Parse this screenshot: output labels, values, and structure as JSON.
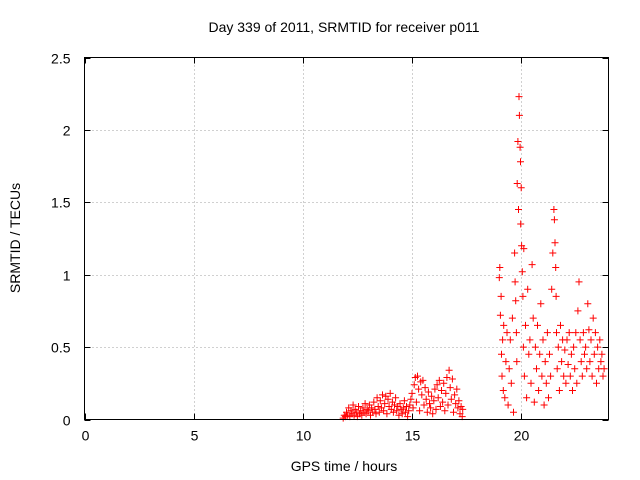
{
  "chart_data": {
    "type": "scatter",
    "title": "Day 339 of 2011, SRMTID for receiver p011",
    "xlabel": "GPS time / hours",
    "ylabel": "SRMTID / TECUs",
    "xlim": [
      0,
      24
    ],
    "ylim": [
      0,
      2.5
    ],
    "x_ticks": [
      0,
      5,
      10,
      15,
      20
    ],
    "x_tick_labels": [
      "0",
      "5",
      "10",
      "15",
      "20"
    ],
    "y_ticks": [
      0,
      0.5,
      1,
      1.5,
      2,
      2.5
    ],
    "y_tick_labels": [
      "0",
      "0.5",
      "1",
      "1.5",
      "2",
      "2.5"
    ],
    "grid": true,
    "marker": "+",
    "series": [
      {
        "name": "SRMTID p011",
        "color": "#ff0000",
        "points": [
          [
            11.85,
            0.01
          ],
          [
            11.9,
            0.03
          ],
          [
            11.95,
            0.02
          ],
          [
            12.0,
            0.05
          ],
          [
            12.05,
            0.03
          ],
          [
            12.1,
            0.08
          ],
          [
            12.15,
            0.02
          ],
          [
            12.2,
            0.06
          ],
          [
            12.25,
            0.04
          ],
          [
            12.3,
            0.1
          ],
          [
            12.35,
            0.03
          ],
          [
            12.4,
            0.07
          ],
          [
            12.45,
            0.05
          ],
          [
            12.5,
            0.02
          ],
          [
            12.55,
            0.09
          ],
          [
            12.6,
            0.04
          ],
          [
            12.65,
            0.06
          ],
          [
            12.7,
            0.03
          ],
          [
            12.75,
            0.08
          ],
          [
            12.8,
            0.05
          ],
          [
            12.85,
            0.11
          ],
          [
            12.9,
            0.04
          ],
          [
            12.95,
            0.07
          ],
          [
            13.0,
            0.06
          ],
          [
            13.05,
            0.1
          ],
          [
            13.1,
            0.03
          ],
          [
            13.15,
            0.08
          ],
          [
            13.2,
            0.05
          ],
          [
            13.25,
            0.12
          ],
          [
            13.3,
            0.07
          ],
          [
            13.35,
            0.04
          ],
          [
            13.4,
            0.15
          ],
          [
            13.45,
            0.09
          ],
          [
            13.5,
            0.05
          ],
          [
            13.55,
            0.13
          ],
          [
            13.6,
            0.08
          ],
          [
            13.65,
            0.17
          ],
          [
            13.7,
            0.06
          ],
          [
            13.75,
            0.11
          ],
          [
            13.8,
            0.16
          ],
          [
            13.85,
            0.04
          ],
          [
            13.9,
            0.14
          ],
          [
            13.95,
            0.09
          ],
          [
            14.0,
            0.18
          ],
          [
            14.05,
            0.07
          ],
          [
            14.1,
            0.12
          ],
          [
            14.15,
            0.05
          ],
          [
            14.2,
            0.1
          ],
          [
            14.25,
            0.15
          ],
          [
            14.3,
            0.06
          ],
          [
            14.35,
            0.09
          ],
          [
            14.4,
            0.03
          ],
          [
            14.45,
            0.11
          ],
          [
            14.5,
            0.07
          ],
          [
            14.55,
            0.04
          ],
          [
            14.6,
            0.08
          ],
          [
            14.65,
            0.13
          ],
          [
            14.7,
            0.05
          ],
          [
            14.75,
            0.09
          ],
          [
            14.8,
            0.02
          ],
          [
            14.85,
            0.06
          ],
          [
            14.9,
            0.1
          ],
          [
            14.95,
            0.14
          ],
          [
            15.0,
            0.18
          ],
          [
            15.05,
            0.08
          ],
          [
            15.1,
            0.24
          ],
          [
            15.15,
            0.29
          ],
          [
            15.2,
            0.12
          ],
          [
            15.25,
            0.3
          ],
          [
            15.3,
            0.21
          ],
          [
            15.35,
            0.06
          ],
          [
            15.4,
            0.26
          ],
          [
            15.45,
            0.17
          ],
          [
            15.5,
            0.27
          ],
          [
            15.55,
            0.1
          ],
          [
            15.6,
            0.22
          ],
          [
            15.65,
            0.14
          ],
          [
            15.7,
            0.05
          ],
          [
            15.75,
            0.19
          ],
          [
            15.8,
            0.11
          ],
          [
            15.85,
            0.08
          ],
          [
            15.9,
            0.16
          ],
          [
            15.95,
            0.04
          ],
          [
            16.0,
            0.13
          ],
          [
            16.05,
            0.21
          ],
          [
            16.1,
            0.07
          ],
          [
            16.15,
            0.24
          ],
          [
            16.2,
            0.15
          ],
          [
            16.25,
            0.27
          ],
          [
            16.3,
            0.09
          ],
          [
            16.35,
            0.2
          ],
          [
            16.4,
            0.12
          ],
          [
            16.45,
            0.25
          ],
          [
            16.5,
            0.06
          ],
          [
            16.55,
            0.18
          ],
          [
            16.6,
            0.29
          ],
          [
            16.65,
            0.1
          ],
          [
            16.7,
            0.34
          ],
          [
            16.75,
            0.22
          ],
          [
            16.8,
            0.14
          ],
          [
            16.85,
            0.28
          ],
          [
            16.9,
            0.05
          ],
          [
            16.95,
            0.17
          ],
          [
            17.0,
            0.11
          ],
          [
            17.05,
            0.21
          ],
          [
            17.1,
            0.08
          ],
          [
            17.15,
            0.13
          ],
          [
            17.2,
            0.04
          ],
          [
            17.25,
            0.09
          ],
          [
            17.3,
            0.02
          ],
          [
            17.32,
            0.07
          ],
          [
            19.0,
            0.98
          ],
          [
            19.02,
            1.05
          ],
          [
            19.05,
            0.72
          ],
          [
            19.08,
            0.85
          ],
          [
            19.1,
            0.45
          ],
          [
            19.12,
            0.3
          ],
          [
            19.15,
            0.55
          ],
          [
            19.18,
            0.2
          ],
          [
            19.2,
            0.65
          ],
          [
            19.25,
            0.15
          ],
          [
            19.3,
            0.4
          ],
          [
            19.35,
            0.6
          ],
          [
            19.4,
            0.1
          ],
          [
            19.45,
            0.35
          ],
          [
            19.5,
            0.55
          ],
          [
            19.55,
            0.25
          ],
          [
            19.6,
            0.7
          ],
          [
            19.65,
            0.05
          ],
          [
            19.7,
            1.15
          ],
          [
            19.72,
            0.95
          ],
          [
            19.75,
            0.82
          ],
          [
            19.78,
            0.6
          ],
          [
            19.8,
            0.4
          ],
          [
            19.82,
            1.63
          ],
          [
            19.85,
            1.92
          ],
          [
            19.88,
            1.45
          ],
          [
            19.9,
            2.23
          ],
          [
            19.92,
            2.1
          ],
          [
            19.95,
            1.88
          ],
          [
            19.97,
            1.78
          ],
          [
            19.98,
            1.35
          ],
          [
            20.0,
            1.6
          ],
          [
            20.02,
            1.2
          ],
          [
            20.05,
            1.02
          ],
          [
            20.08,
            0.85
          ],
          [
            20.1,
            0.5
          ],
          [
            20.12,
            1.18
          ],
          [
            20.15,
            0.3
          ],
          [
            20.2,
            0.65
          ],
          [
            20.25,
            0.15
          ],
          [
            20.3,
            0.9
          ],
          [
            20.35,
            0.45
          ],
          [
            20.4,
            0.55
          ],
          [
            20.45,
            0.25
          ],
          [
            20.5,
            1.07
          ],
          [
            20.55,
            0.7
          ],
          [
            20.6,
            0.12
          ],
          [
            20.65,
            0.5
          ],
          [
            20.7,
            0.35
          ],
          [
            20.75,
            0.65
          ],
          [
            20.8,
            0.2
          ],
          [
            20.85,
            0.45
          ],
          [
            20.9,
            0.8
          ],
          [
            20.95,
            0.3
          ],
          [
            21.0,
            0.55
          ],
          [
            21.05,
            0.1
          ],
          [
            21.1,
            0.4
          ],
          [
            21.15,
            0.25
          ],
          [
            21.2,
            0.6
          ],
          [
            21.25,
            0.15
          ],
          [
            21.3,
            0.45
          ],
          [
            21.35,
            0.3
          ],
          [
            21.4,
            0.9
          ],
          [
            21.45,
            1.15
          ],
          [
            21.5,
            1.45
          ],
          [
            21.52,
            1.38
          ],
          [
            21.55,
            1.22
          ],
          [
            21.58,
            1.05
          ],
          [
            21.6,
            0.85
          ],
          [
            21.62,
            0.6
          ],
          [
            21.65,
            0.35
          ],
          [
            21.7,
            0.5
          ],
          [
            21.75,
            0.2
          ],
          [
            21.8,
            0.65
          ],
          [
            21.85,
            0.4
          ],
          [
            21.9,
            0.55
          ],
          [
            21.95,
            0.3
          ],
          [
            22.0,
            0.48
          ],
          [
            22.05,
            0.25
          ],
          [
            22.1,
            0.55
          ],
          [
            22.15,
            0.38
          ],
          [
            22.2,
            0.6
          ],
          [
            22.25,
            0.3
          ],
          [
            22.3,
            0.45
          ],
          [
            22.35,
            0.2
          ],
          [
            22.4,
            0.5
          ],
          [
            22.45,
            0.35
          ],
          [
            22.5,
            0.6
          ],
          [
            22.55,
            0.25
          ],
          [
            22.6,
            0.75
          ],
          [
            22.65,
            0.95
          ],
          [
            22.7,
            0.55
          ],
          [
            22.75,
            0.4
          ],
          [
            22.8,
            0.3
          ],
          [
            22.85,
            0.6
          ],
          [
            22.9,
            0.45
          ],
          [
            22.95,
            0.5
          ],
          [
            23.0,
            0.35
          ],
          [
            23.05,
            0.8
          ],
          [
            23.1,
            0.62
          ],
          [
            23.15,
            0.4
          ],
          [
            23.2,
            0.55
          ],
          [
            23.25,
            0.3
          ],
          [
            23.3,
            0.7
          ],
          [
            23.35,
            0.45
          ],
          [
            23.4,
            0.6
          ],
          [
            23.45,
            0.25
          ],
          [
            23.5,
            0.5
          ],
          [
            23.55,
            0.35
          ],
          [
            23.6,
            0.55
          ],
          [
            23.65,
            0.4
          ],
          [
            23.7,
            0.45
          ],
          [
            23.75,
            0.3
          ],
          [
            23.8,
            0.35
          ]
        ]
      }
    ]
  }
}
